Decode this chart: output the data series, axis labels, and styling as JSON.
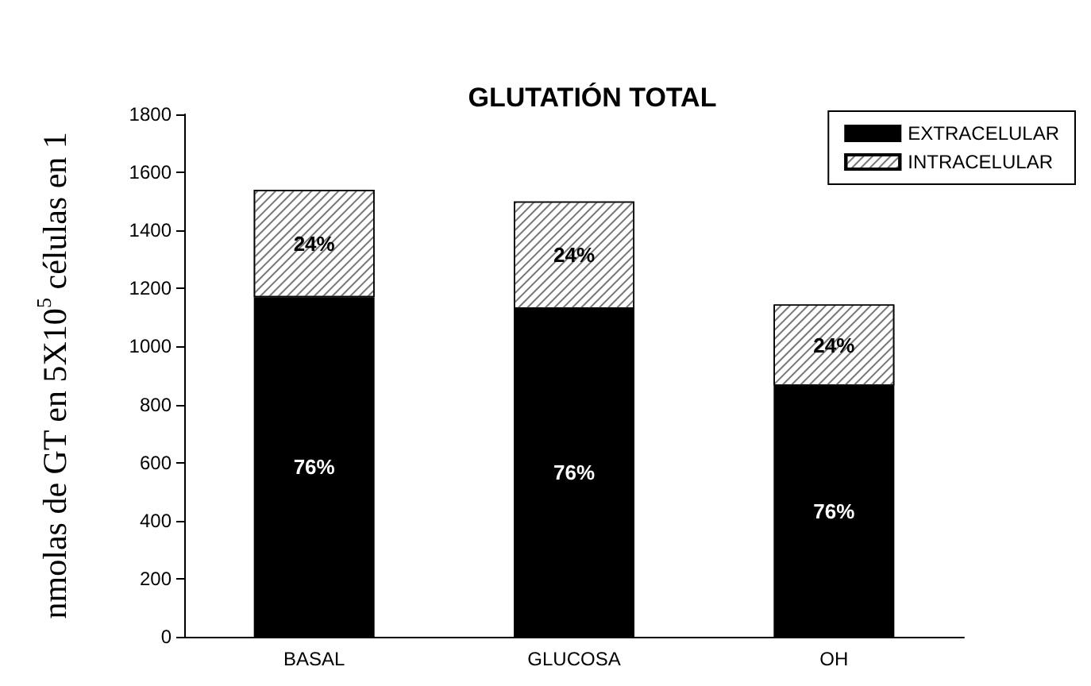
{
  "chart_data": {
    "type": "bar",
    "stacked": true,
    "title": "GLUTATIÓN TOTAL",
    "ylabel": "nmolas de GT en 5X10$^{5}$ células en 1",
    "categories": [
      "BASAL",
      "GLUCOSA",
      "OH"
    ],
    "series": [
      {
        "name": "EXTRACELULAR",
        "color": "#000000",
        "values": [
          1170,
          1130,
          865
        ]
      },
      {
        "name": "INTRACELULAR",
        "color": "#ffffff",
        "values": [
          370,
          370,
          280
        ]
      }
    ],
    "annotations": [
      "76%",
      "24%",
      "76%",
      "24%",
      "76%",
      "24%"
    ],
    "ylim": [
      0,
      1800
    ],
    "yticks": [
      0,
      200,
      400,
      600,
      800,
      1000,
      1200,
      1400,
      1600,
      1800
    ],
    "grid": false,
    "legend": "top right"
  }
}
